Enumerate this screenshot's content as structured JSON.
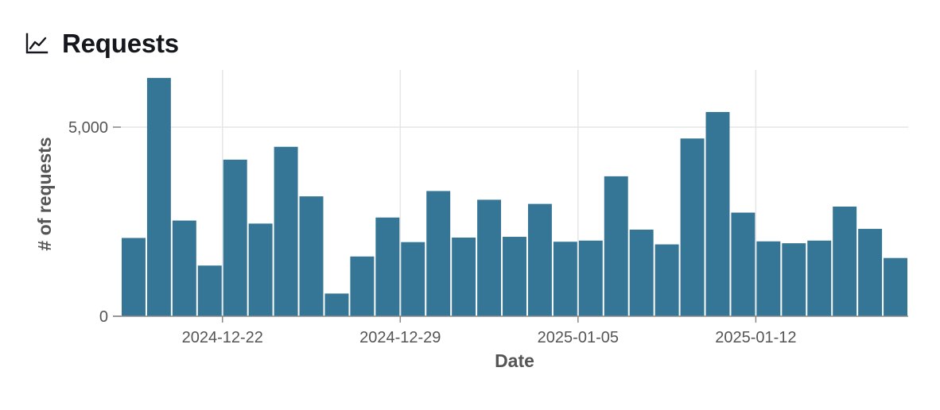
{
  "panel": {
    "title": "Requests",
    "icon": "line-chart-icon"
  },
  "colors": {
    "bar": "#357696",
    "grid": "#e6e6e6",
    "axis": "#888888",
    "text": "#555555",
    "title": "#16161d"
  },
  "chart_data": {
    "type": "bar",
    "title": "Requests",
    "xlabel": "Date",
    "ylabel": "# of requests",
    "grid": true,
    "legend": "none",
    "ylim": [
      0,
      6500
    ],
    "y_ticks": [
      0,
      5000
    ],
    "y_tick_labels": [
      "0",
      "5,000"
    ],
    "x_ticks": [
      "2024-12-22",
      "2024-12-29",
      "2025-01-05",
      "2025-01-12"
    ],
    "x": [
      "2024-12-18",
      "2024-12-19",
      "2024-12-20",
      "2024-12-21",
      "2024-12-22",
      "2024-12-23",
      "2024-12-24",
      "2024-12-25",
      "2024-12-26",
      "2024-12-27",
      "2024-12-28",
      "2024-12-29",
      "2024-12-30",
      "2024-12-31",
      "2025-01-01",
      "2025-01-02",
      "2025-01-03",
      "2025-01-04",
      "2025-01-05",
      "2025-01-06",
      "2025-01-07",
      "2025-01-08",
      "2025-01-09",
      "2025-01-10",
      "2025-01-11",
      "2025-01-12",
      "2025-01-13",
      "2025-01-14",
      "2025-01-15",
      "2025-01-16"
    ],
    "values": [
      2070,
      6300,
      2530,
      1340,
      4140,
      2450,
      4480,
      3170,
      600,
      1580,
      2610,
      1960,
      3310,
      2080,
      3080,
      2100,
      2970,
      1970,
      2000,
      3700,
      2290,
      1900,
      4700,
      5400,
      2740,
      1980,
      1930,
      2000,
      2900,
      2310
    ],
    "values_last": 1540
  }
}
